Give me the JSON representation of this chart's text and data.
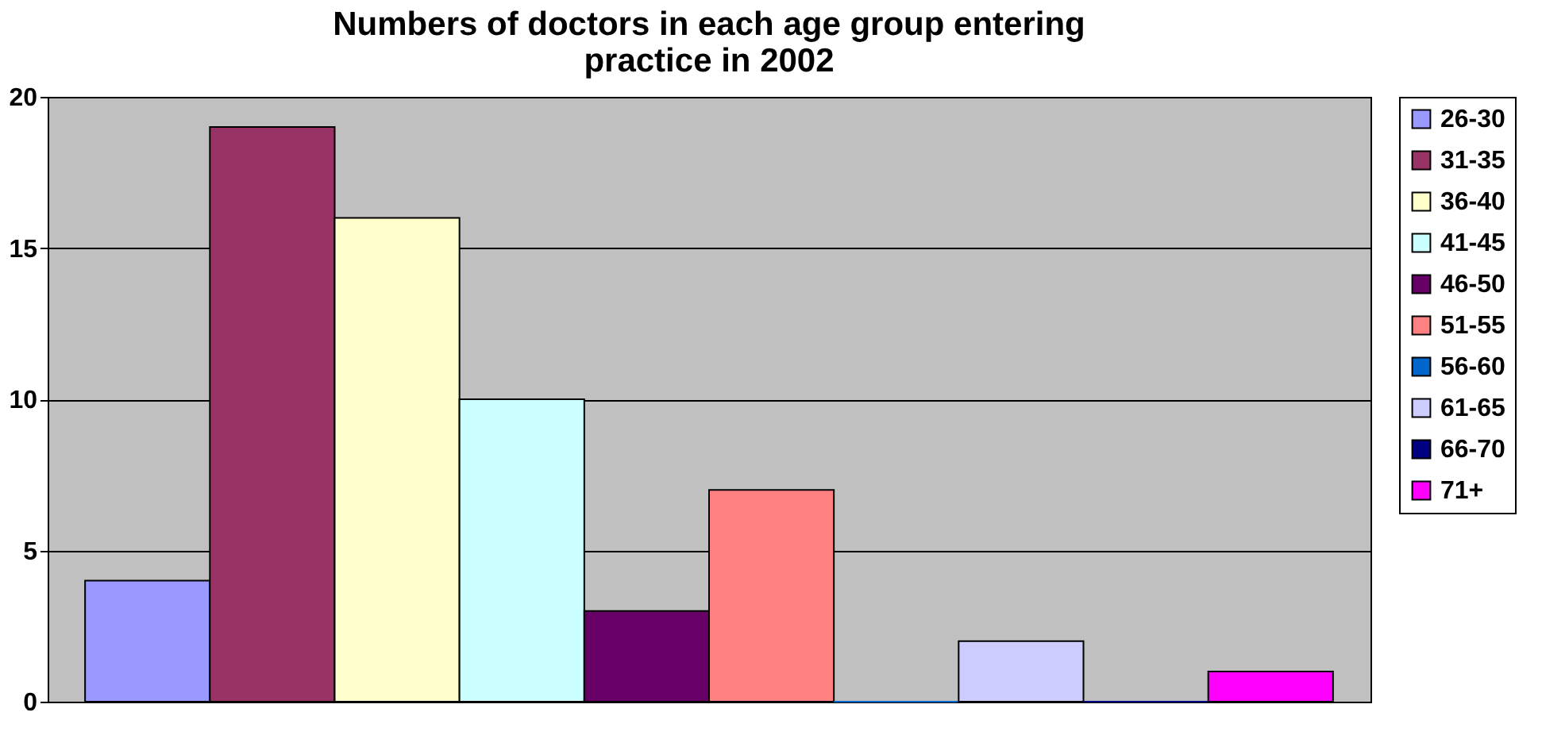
{
  "chart_data": {
    "type": "bar",
    "title": [
      "Numbers of doctors in each age group entering",
      "practice in 2002"
    ],
    "categories": [
      null
    ],
    "series": [
      {
        "name": "26-30",
        "color": "#9999ff",
        "values": [
          4
        ]
      },
      {
        "name": "31-35",
        "color": "#993366",
        "values": [
          19
        ]
      },
      {
        "name": "36-40",
        "color": "#ffffcc",
        "values": [
          16
        ]
      },
      {
        "name": "41-45",
        "color": "#ccffff",
        "values": [
          10
        ]
      },
      {
        "name": "46-50",
        "color": "#660066",
        "values": [
          3
        ]
      },
      {
        "name": "51-55",
        "color": "#ff8080",
        "values": [
          7
        ]
      },
      {
        "name": "56-60",
        "color": "#0066cc",
        "values": [
          0
        ]
      },
      {
        "name": "61-65",
        "color": "#ccccff",
        "values": [
          2
        ]
      },
      {
        "name": "66-70",
        "color": "#000080",
        "values": [
          0
        ]
      },
      {
        "name": "71+",
        "color": "#ff00ff",
        "values": [
          1
        ]
      }
    ],
    "ylim": [
      0,
      20
    ],
    "yticks": [
      0,
      5,
      10,
      15,
      20
    ],
    "grid": "y",
    "legend": "right",
    "tick_labels": "y"
  }
}
